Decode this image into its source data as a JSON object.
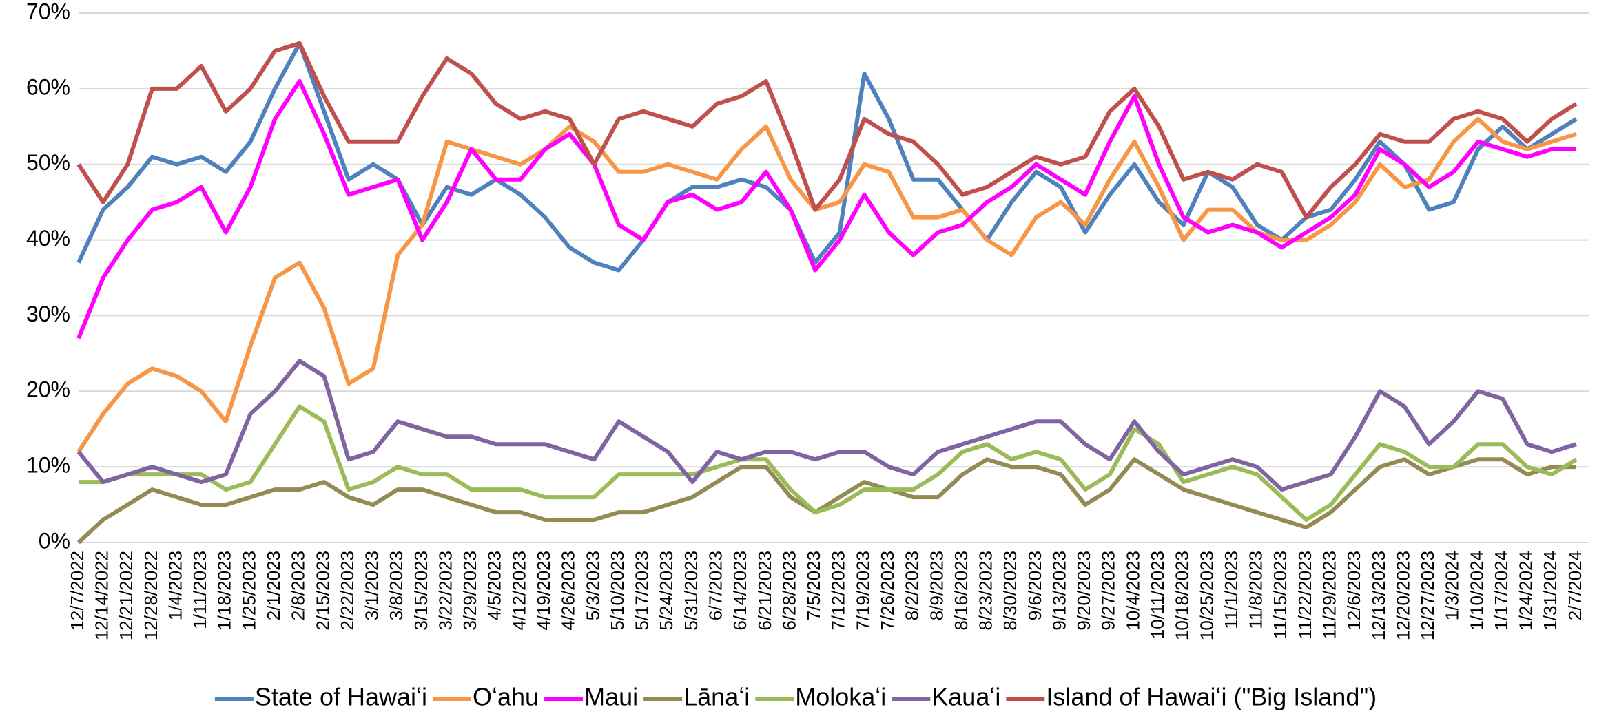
{
  "chart_data": {
    "type": "line",
    "categories": [
      "12/7/2022",
      "12/14/2022",
      "12/21/2022",
      "12/28/2022",
      "1/4/2023",
      "1/11/2023",
      "1/18/2023",
      "1/25/2023",
      "2/1/2023",
      "2/8/2023",
      "2/15/2023",
      "2/22/2023",
      "3/1/2023",
      "3/8/2023",
      "3/15/2023",
      "3/22/2023",
      "3/29/2023",
      "4/5/2023",
      "4/12/2023",
      "4/19/2023",
      "4/26/2023",
      "5/3/2023",
      "5/10/2023",
      "5/17/2023",
      "5/24/2023",
      "5/31/2023",
      "6/7/2023",
      "6/14/2023",
      "6/21/2023",
      "6/28/2023",
      "7/5/2023",
      "7/12/2023",
      "7/19/2023",
      "7/26/2023",
      "8/2/2023",
      "8/9/2023",
      "8/16/2023",
      "8/23/2023",
      "8/30/2023",
      "9/6/2023",
      "9/13/2023",
      "9/20/2023",
      "9/27/2023",
      "10/4/2023",
      "10/11/2023",
      "10/18/2023",
      "10/25/2023",
      "11/1/2023",
      "11/8/2023",
      "11/15/2023",
      "11/22/2023",
      "11/29/2023",
      "12/6/2023",
      "12/13/2023",
      "12/20/2023",
      "12/27/2023",
      "1/3/2024",
      "1/10/2024",
      "1/17/2024",
      "1/24/2024",
      "1/31/2024",
      "2/7/2024"
    ],
    "series": [
      {
        "name": "State of Hawaiʻi",
        "color": "#4f81bd",
        "values": [
          37,
          44,
          47,
          51,
          50,
          51,
          49,
          53,
          60,
          66,
          57,
          48,
          50,
          48,
          42,
          47,
          46,
          48,
          46,
          43,
          39,
          37,
          36,
          40,
          45,
          47,
          47,
          48,
          47,
          44,
          37,
          41,
          62,
          56,
          48,
          48,
          44,
          40,
          45,
          49,
          47,
          41,
          46,
          50,
          45,
          42,
          49,
          47,
          42,
          40,
          43,
          44,
          48,
          53,
          50,
          44,
          45,
          52,
          55,
          52,
          54,
          56
        ]
      },
      {
        "name": "Oʻahu",
        "color": "#f79646",
        "values": [
          12,
          17,
          21,
          23,
          22,
          20,
          16,
          26,
          35,
          37,
          31,
          21,
          23,
          38,
          42,
          53,
          52,
          51,
          50,
          52,
          55,
          53,
          49,
          49,
          50,
          49,
          48,
          52,
          55,
          48,
          44,
          45,
          50,
          49,
          43,
          43,
          44,
          40,
          38,
          43,
          45,
          42,
          48,
          53,
          47,
          40,
          44,
          44,
          41,
          40,
          40,
          42,
          45,
          50,
          47,
          48,
          53,
          56,
          53,
          52,
          53,
          54
        ]
      },
      {
        "name": "Maui",
        "color": "#ff00ff",
        "values": [
          27,
          35,
          40,
          44,
          45,
          47,
          41,
          47,
          56,
          61,
          54,
          46,
          47,
          48,
          40,
          45,
          52,
          48,
          48,
          52,
          54,
          50,
          42,
          40,
          45,
          46,
          44,
          45,
          49,
          44,
          36,
          40,
          46,
          41,
          38,
          41,
          42,
          45,
          47,
          50,
          48,
          46,
          53,
          59,
          50,
          43,
          41,
          42,
          41,
          39,
          41,
          43,
          46,
          52,
          50,
          47,
          49,
          53,
          52,
          51,
          52,
          52
        ]
      },
      {
        "name": "Lānaʻi",
        "color": "#948a54",
        "values": [
          0,
          3,
          5,
          7,
          6,
          5,
          5,
          6,
          7,
          7,
          8,
          6,
          5,
          7,
          7,
          6,
          5,
          4,
          4,
          3,
          3,
          3,
          4,
          4,
          5,
          6,
          8,
          10,
          10,
          6,
          4,
          6,
          8,
          7,
          6,
          6,
          9,
          11,
          10,
          10,
          9,
          5,
          7,
          11,
          9,
          7,
          6,
          5,
          4,
          3,
          2,
          4,
          7,
          10,
          11,
          9,
          10,
          11,
          11,
          9,
          10,
          10
        ]
      },
      {
        "name": "Molokaʻi",
        "color": "#9bbb59",
        "values": [
          8,
          8,
          9,
          9,
          9,
          9,
          7,
          8,
          13,
          18,
          16,
          7,
          8,
          10,
          9,
          9,
          7,
          7,
          7,
          6,
          6,
          6,
          9,
          9,
          9,
          9,
          10,
          11,
          11,
          7,
          4,
          5,
          7,
          7,
          7,
          9,
          12,
          13,
          11,
          12,
          11,
          7,
          9,
          15,
          13,
          8,
          9,
          10,
          9,
          6,
          3,
          5,
          9,
          13,
          12,
          10,
          10,
          13,
          13,
          10,
          9,
          11
        ]
      },
      {
        "name": "Kauaʻi",
        "color": "#8064a2",
        "values": [
          12,
          8,
          9,
          10,
          9,
          8,
          9,
          17,
          20,
          24,
          22,
          11,
          12,
          16,
          15,
          14,
          14,
          13,
          13,
          13,
          12,
          11,
          16,
          14,
          12,
          8,
          12,
          11,
          12,
          12,
          11,
          12,
          12,
          10,
          9,
          12,
          13,
          14,
          15,
          16,
          16,
          13,
          11,
          16,
          12,
          9,
          10,
          11,
          10,
          7,
          8,
          9,
          14,
          20,
          18,
          13,
          16,
          20,
          19,
          13,
          12,
          13
        ]
      },
      {
        "name": "Island of Hawaiʻi (\"Big Island\")",
        "color": "#c0504d",
        "values": [
          50,
          45,
          50,
          60,
          60,
          63,
          57,
          60,
          65,
          66,
          59,
          53,
          53,
          53,
          59,
          64,
          62,
          58,
          56,
          57,
          56,
          50,
          56,
          57,
          56,
          55,
          58,
          59,
          61,
          53,
          44,
          48,
          56,
          54,
          53,
          50,
          46,
          47,
          49,
          51,
          50,
          51,
          57,
          60,
          55,
          48,
          49,
          48,
          50,
          49,
          43,
          47,
          50,
          54,
          53,
          53,
          56,
          57,
          56,
          53,
          56,
          58
        ]
      }
    ],
    "ylim": [
      0,
      70
    ],
    "yticks": [
      {
        "value": 0,
        "label": "0%"
      },
      {
        "value": 10,
        "label": "10%"
      },
      {
        "value": 20,
        "label": "20%"
      },
      {
        "value": 30,
        "label": "30%"
      },
      {
        "value": 40,
        "label": "40%"
      },
      {
        "value": 50,
        "label": "50%"
      },
      {
        "value": 60,
        "label": "60%"
      },
      {
        "value": 70,
        "label": "70%"
      }
    ],
    "grid": true,
    "legend": "bottom"
  }
}
